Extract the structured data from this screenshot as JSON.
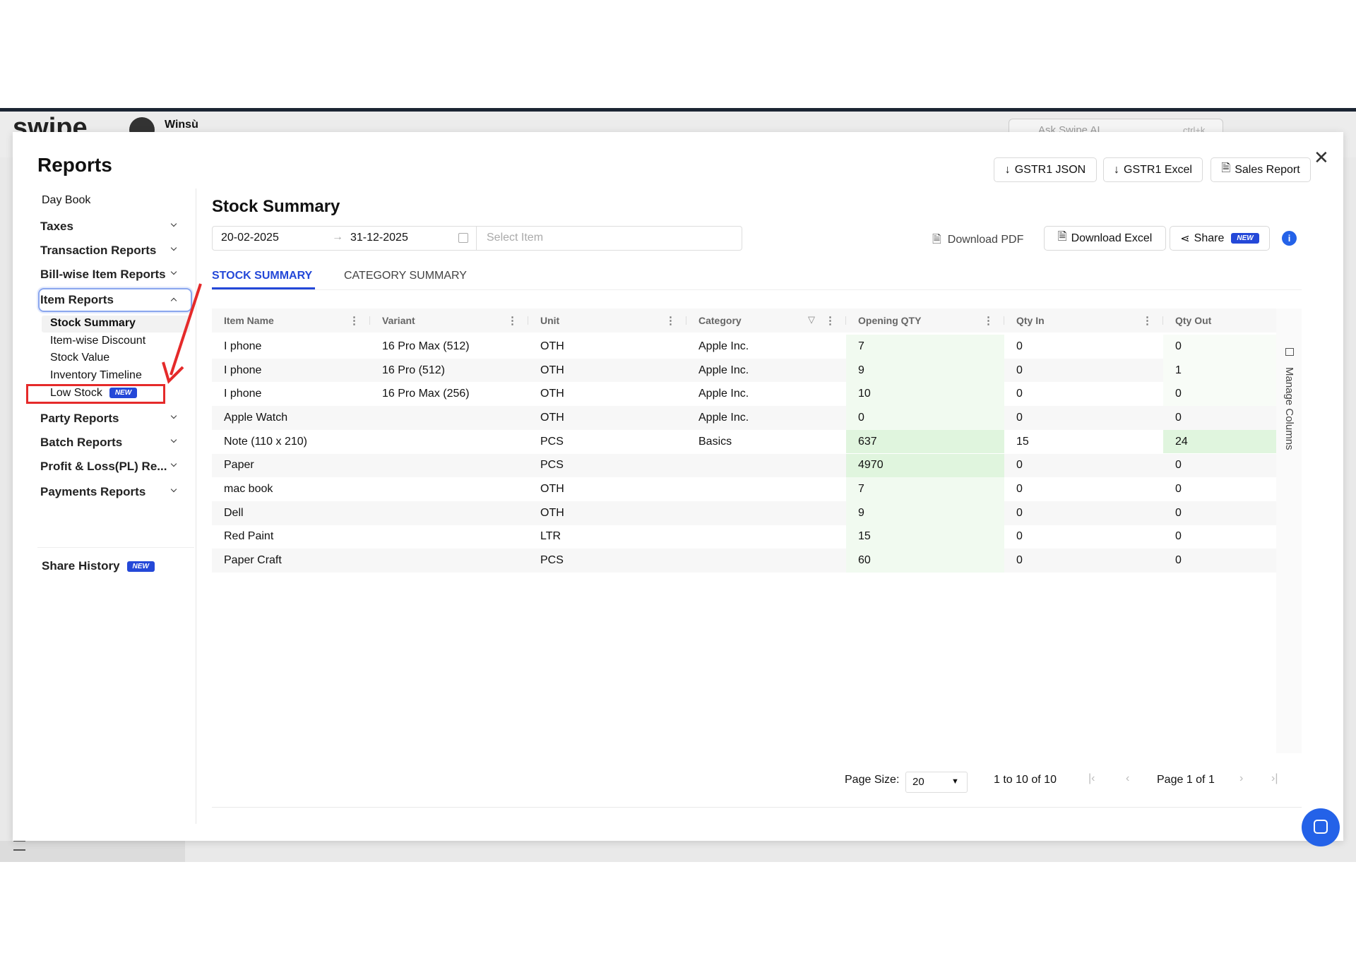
{
  "app_header": {
    "logo": "swipe",
    "business": "Winsù",
    "search_placeholder": "Ask Swipe AI",
    "search_shortcut": "ctrl+k"
  },
  "modal": {
    "title": "Reports",
    "top_buttons": [
      "GSTR1 JSON",
      "GSTR1 Excel",
      "Sales Report"
    ],
    "sidebar": [
      {
        "label": "Day Book"
      },
      {
        "label": "Taxes"
      },
      {
        "label": "Transaction Reports"
      },
      {
        "label": "Bill-wise Item Reports"
      },
      {
        "label": "Item Reports",
        "children": [
          {
            "label": "Stock Summary"
          },
          {
            "label": "Item-wise Discount"
          },
          {
            "label": "Stock Value"
          },
          {
            "label": "Inventory Timeline"
          },
          {
            "label": "Low Stock",
            "badge": "NEW"
          }
        ]
      },
      {
        "label": "Party Reports"
      },
      {
        "label": "Batch Reports"
      },
      {
        "label": "Profit & Loss(PL) Re..."
      },
      {
        "label": "Payments Reports"
      }
    ],
    "share_history": {
      "label": "Share History",
      "badge": "NEW"
    },
    "report": {
      "title": "Stock Summary",
      "date_from": "20-02-2025",
      "date_to": "31-12-2025",
      "item_placeholder": "Select Item",
      "actions": {
        "pdf": "Download PDF",
        "excel": "Download Excel",
        "share": "Share",
        "share_badge": "NEW"
      },
      "tabs": [
        "STOCK SUMMARY",
        "CATEGORY SUMMARY"
      ],
      "table": {
        "columns": [
          "Item Name",
          "Variant",
          "Unit",
          "Category",
          "Opening QTY",
          "Qty In",
          "Qty Out"
        ],
        "rows": [
          [
            "I phone",
            "16 Pro Max (512)",
            "OTH",
            "Apple Inc.",
            7,
            0,
            0
          ],
          [
            "I phone",
            "16 Pro (512)",
            "OTH",
            "Apple Inc.",
            9,
            0,
            1
          ],
          [
            "I phone",
            "16 Pro Max (256)",
            "OTH",
            "Apple Inc.",
            10,
            0,
            0
          ],
          [
            "Apple Watch",
            null,
            "OTH",
            "Apple Inc.",
            0,
            0,
            0
          ],
          [
            "Note (110 x 210)",
            null,
            "PCS",
            "Basics",
            637,
            15,
            24
          ],
          [
            "Paper",
            null,
            "PCS",
            null,
            4970,
            0,
            0
          ],
          [
            "mac book",
            null,
            "OTH",
            null,
            7,
            0,
            0
          ],
          [
            "Dell",
            null,
            "OTH",
            null,
            9,
            0,
            0
          ],
          [
            "Red Paint",
            null,
            "LTR",
            null,
            15,
            0,
            0
          ],
          [
            "Paper Craft",
            null,
            "PCS",
            null,
            60,
            0,
            0
          ]
        ]
      },
      "manage_columns": "Manage Columns",
      "pagination": {
        "page_size_label": "Page Size:",
        "page_size": 20,
        "range": "1 to 10 of 10",
        "page": "Page 1 of 1"
      }
    }
  }
}
